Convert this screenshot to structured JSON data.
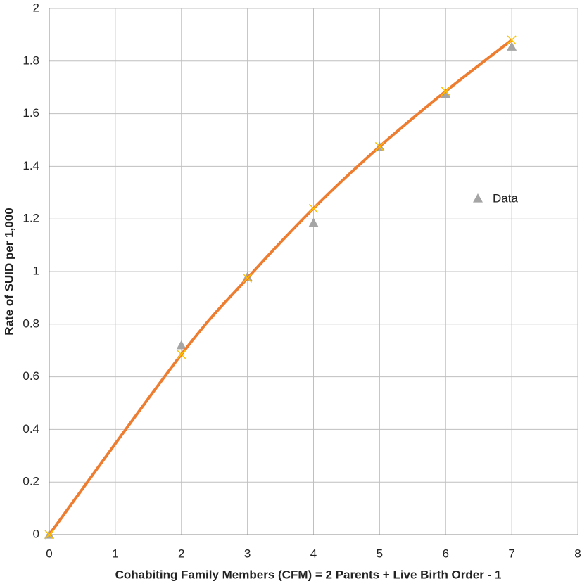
{
  "chart_data": {
    "type": "scatter",
    "x_label": "Cohabiting Family Members (CFM) = 2 Parents + Live Birth Order - 1",
    "y_label": "Rate of SUID per 1,000",
    "x": [
      0,
      2,
      3,
      4,
      5,
      6,
      7
    ],
    "series": [
      {
        "name": "Data",
        "color": "#a5a5a5",
        "marker": "triangle",
        "values": [
          0,
          0.72,
          0.98,
          1.185,
          1.475,
          1.675,
          1.855
        ]
      },
      {
        "color": "#ed7d31",
        "marker_color": "#ffc000",
        "marker": "x",
        "line": true,
        "values": [
          0,
          0.685,
          0.975,
          1.24,
          1.475,
          1.685,
          1.88
        ]
      }
    ],
    "xlim": [
      0,
      8
    ],
    "xticks": [
      0,
      1,
      2,
      3,
      4,
      5,
      6,
      7,
      8
    ],
    "ylim": [
      0,
      2
    ],
    "yticks": [
      0,
      0.2,
      0.4,
      0.6,
      0.8,
      1,
      1.2,
      1.4,
      1.6,
      1.8,
      2
    ],
    "grid": true,
    "legend": "right"
  }
}
